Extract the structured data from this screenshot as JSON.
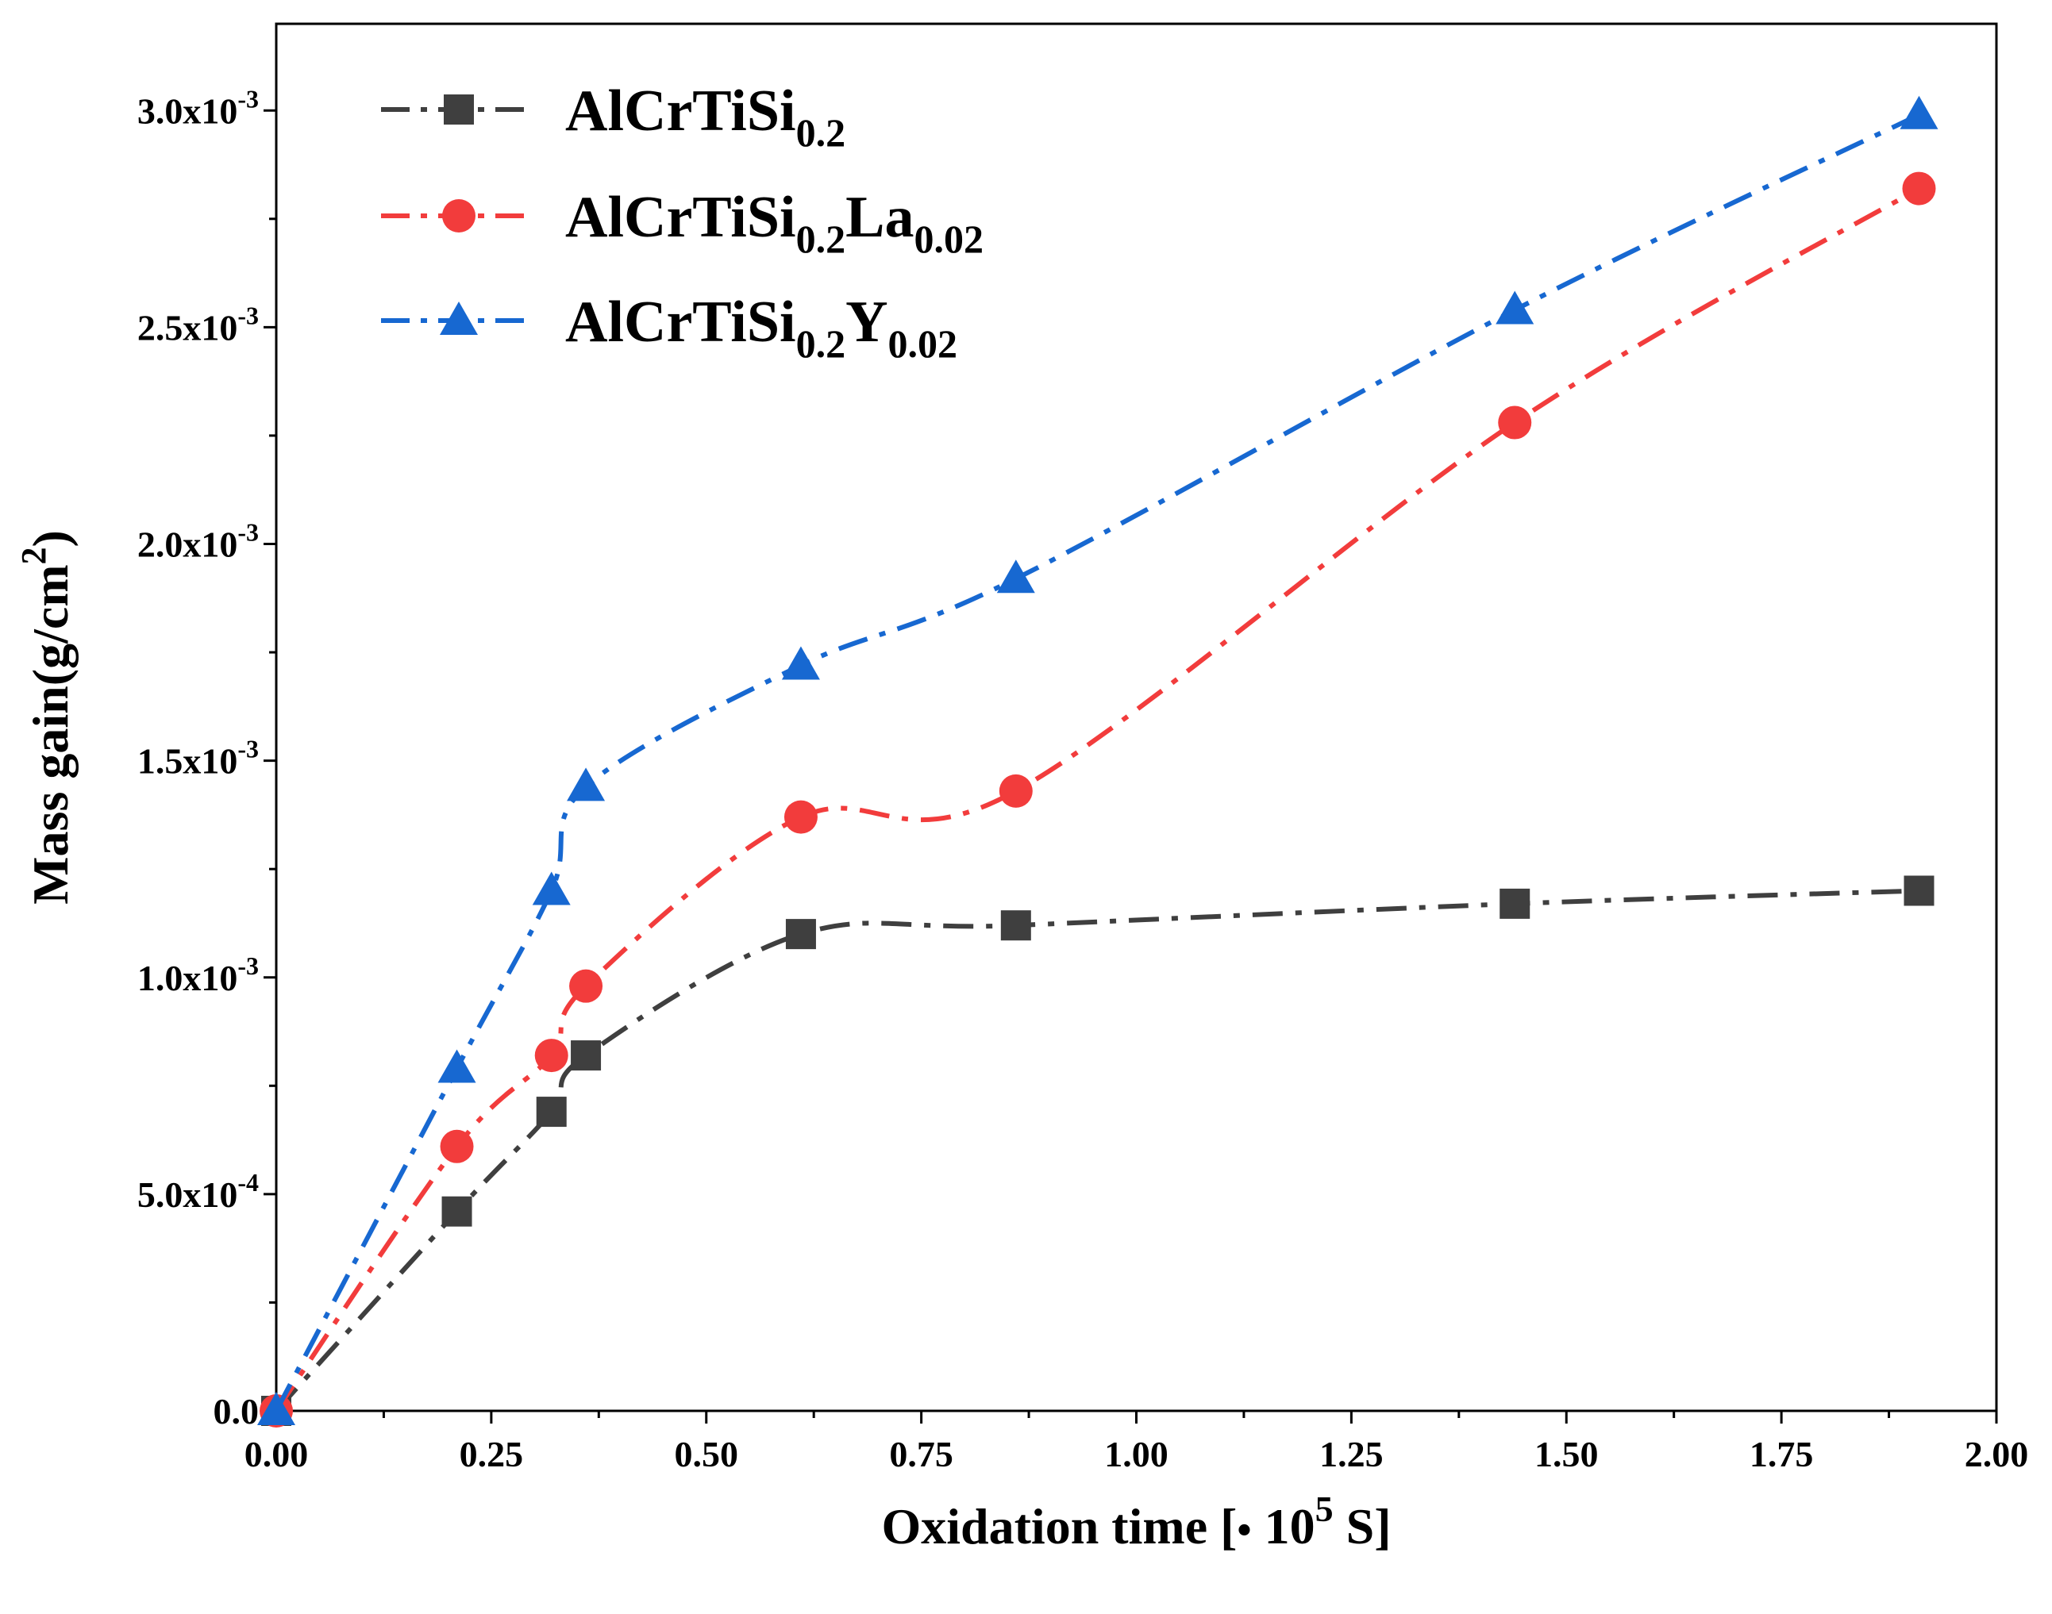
{
  "chart_data": {
    "type": "line",
    "xlabel": {
      "main": "Oxidation time [",
      "bullet": "•",
      "base": " 10",
      "exp": "5",
      "unit": " S]"
    },
    "ylabel": {
      "main": "Mass gain(g/cm",
      "exp": "2",
      "close": ")"
    },
    "xlim": [
      0,
      2.0
    ],
    "ylim": [
      0,
      0.0032
    ],
    "x_ticks": [
      0,
      0.25,
      0.5,
      0.75,
      1.0,
      1.25,
      1.5,
      1.75,
      2.0
    ],
    "x_tick_labels": [
      "0.00",
      "0.25",
      "0.50",
      "0.75",
      "1.00",
      "1.25",
      "1.50",
      "1.75",
      "2.00"
    ],
    "y_ticks": [
      {
        "value": 0,
        "mant": "0.0",
        "exp": ""
      },
      {
        "value": 0.0005,
        "mant": "5.0x10",
        "exp": "-4"
      },
      {
        "value": 0.001,
        "mant": "1.0x10",
        "exp": "-3"
      },
      {
        "value": 0.0015,
        "mant": "1.5x10",
        "exp": "-3"
      },
      {
        "value": 0.002,
        "mant": "2.0x10",
        "exp": "-3"
      },
      {
        "value": 0.0025,
        "mant": "2.5x10",
        "exp": "-3"
      },
      {
        "value": 0.003,
        "mant": "3.0x10",
        "exp": "-3"
      }
    ],
    "grid": false,
    "legend_position": "top-left",
    "series": [
      {
        "name_parts": [
          {
            "t": "AlCrTiSi",
            "s": false
          },
          {
            "t": "0.2",
            "s": true
          }
        ],
        "color": "#3f3f3f",
        "marker": "square",
        "x": [
          0,
          0.21,
          0.32,
          0.36,
          0.61,
          0.86,
          1.44,
          1.91
        ],
        "y": [
          0,
          0.00046,
          0.00069,
          0.00082,
          0.0011,
          0.00112,
          0.00117,
          0.0012
        ]
      },
      {
        "name_parts": [
          {
            "t": "AlCrTiSi",
            "s": false
          },
          {
            "t": "0.2",
            "s": true
          },
          {
            "t": "La",
            "s": false
          },
          {
            "t": "0.02",
            "s": true
          }
        ],
        "color": "#f23c3c",
        "marker": "circle",
        "x": [
          0,
          0.21,
          0.32,
          0.36,
          0.61,
          0.86,
          1.44,
          1.91
        ],
        "y": [
          0,
          0.00061,
          0.00082,
          0.00098,
          0.00137,
          0.00143,
          0.00228,
          0.00282
        ]
      },
      {
        "name_parts": [
          {
            "t": "AlCrTiSi",
            "s": false
          },
          {
            "t": "0.2",
            "s": true
          },
          {
            "t": "Y",
            "s": false
          },
          {
            "t": "0.02",
            "s": true
          }
        ],
        "color": "#1768d1",
        "marker": "triangle",
        "x": [
          0,
          0.21,
          0.32,
          0.36,
          0.61,
          0.86,
          1.44,
          1.91
        ],
        "y": [
          0,
          0.00079,
          0.0012,
          0.00144,
          0.00172,
          0.00192,
          0.00254,
          0.00299
        ]
      }
    ]
  }
}
